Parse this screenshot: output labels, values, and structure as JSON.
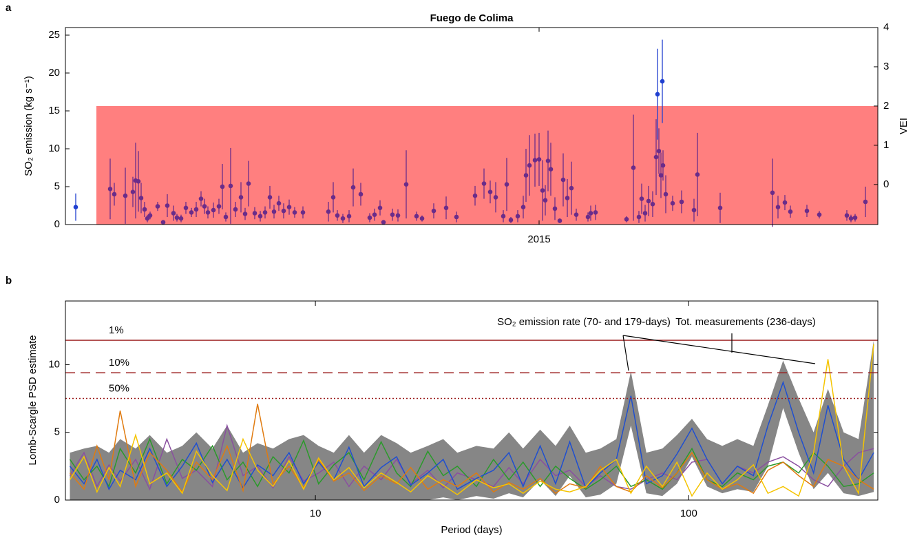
{
  "chart_data": [
    {
      "type": "scatter",
      "panel_label": "a",
      "title": "Fuego de Colima",
      "ylabel": "SO₂ emission (kg s⁻¹)",
      "y2label": "VEI",
      "xlim": [
        2013.624,
        2015.984
      ],
      "xticks": [
        2015
      ],
      "ylim": [
        0,
        26
      ],
      "yticks": [
        0,
        5,
        10,
        15,
        20,
        25
      ],
      "y2lim": [
        -1.02,
        4
      ],
      "y2ticks": [
        0,
        1,
        2,
        3,
        4
      ],
      "vei_band": {
        "value": 2,
        "start": 2013.714,
        "color": "#ff7f7f",
        "axis": "y2"
      },
      "series": [
        {
          "color": "#6a2c8a",
          "x": [
            2013.754,
            2013.766,
            2013.798,
            2013.82,
            2013.828,
            2013.836,
            2013.844,
            2013.854,
            2013.862,
            2013.87,
            2013.892,
            2013.908,
            2013.92,
            2013.938,
            2013.948,
            2013.96,
            2013.974,
            2013.99,
            2014.004,
            2014.018,
            2014.028,
            2014.038,
            2014.054,
            2014.07,
            2014.08,
            2014.09,
            2014.104,
            2014.118,
            2014.134,
            2014.146,
            2014.156,
            2014.174,
            2014.19,
            2014.204,
            2014.218,
            2014.23,
            2014.244,
            2014.258,
            2014.274,
            2014.29,
            2014.314,
            2014.388,
            2014.402,
            2014.414,
            2014.43,
            2014.448,
            2014.46,
            2014.482,
            2014.508,
            2014.522,
            2014.538,
            2014.548,
            2014.574,
            2014.59,
            2014.614,
            2014.644,
            2014.66,
            2014.694,
            2014.73,
            2014.76,
            2014.814,
            2014.84,
            2014.858,
            2014.874,
            2014.896,
            2014.906,
            2014.918,
            2014.938,
            2014.954,
            2014.962,
            2014.972,
            2014.988,
            2015.0,
            2015.01,
            2015.018,
            2015.026,
            2015.034,
            2015.046,
            2015.06,
            2015.07,
            2015.082,
            2015.094,
            2015.108,
            2015.142,
            2015.15,
            2015.164,
            2015.254,
            2015.274,
            2015.29,
            2015.298,
            2015.308,
            2015.318,
            2015.33,
            2015.34,
            2015.348,
            2015.354,
            2015.36,
            2015.368,
            2015.388,
            2015.414,
            2015.45,
            2015.46,
            2015.526,
            2015.678,
            2015.694,
            2015.714,
            2015.73,
            2015.778,
            2015.814,
            2015.894,
            2015.906,
            2015.918,
            2015.948
          ],
          "values": [
            4.7,
            4.0,
            3.8,
            4.3,
            5.8,
            5.7,
            3.5,
            2.0,
            0.8,
            1.2,
            2.4,
            0.3,
            2.5,
            1.5,
            0.9,
            0.8,
            2.2,
            1.6,
            2.0,
            3.4,
            2.4,
            1.6,
            1.9,
            2.4,
            5.0,
            1.0,
            5.1,
            2.0,
            3.6,
            1.4,
            5.4,
            1.5,
            1.1,
            1.6,
            3.6,
            1.7,
            2.8,
            1.8,
            2.3,
            1.6,
            1.6,
            1.7,
            3.6,
            1.2,
            0.8,
            1.1,
            4.9,
            4.0,
            0.9,
            1.3,
            2.2,
            0.3,
            1.3,
            1.2,
            5.3,
            1.1,
            0.8,
            1.8,
            2.2,
            1.0,
            3.8,
            5.4,
            4.3,
            3.6,
            1.1,
            5.3,
            0.6,
            1.1,
            2.3,
            6.5,
            7.8,
            8.5,
            8.6,
            4.5,
            3.2,
            8.4,
            7.3,
            2.1,
            0.5,
            5.9,
            3.5,
            4.8,
            1.3,
            1.0,
            1.5,
            1.6,
            0.7,
            7.5,
            1.0,
            3.4,
            1.5,
            3.1,
            2.7,
            8.9,
            9.7,
            6.5,
            7.8,
            4.0,
            2.8,
            3.0,
            1.9,
            6.6,
            2.2,
            4.2,
            2.3,
            2.9,
            1.7,
            1.8,
            1.3,
            1.2,
            0.8,
            0.9,
            3.0
          ],
          "errors": [
            4,
            1.5,
            3.7,
            2,
            5,
            4,
            2,
            1,
            0.5,
            0.5,
            0.6,
            0.2,
            1.5,
            1,
            0.5,
            0.5,
            0.8,
            0.6,
            1,
            1,
            1,
            0.8,
            1,
            1,
            3,
            0.6,
            5,
            1,
            2,
            0.8,
            3,
            0.8,
            0.7,
            0.8,
            1.5,
            0.9,
            1,
            1,
            1,
            0.7,
            0.8,
            1.3,
            2,
            0.7,
            0.6,
            0.8,
            2.5,
            1.5,
            0.6,
            0.8,
            1,
            0.2,
            0.8,
            0.8,
            4.5,
            0.6,
            0.4,
            1,
            1.5,
            0.7,
            1.3,
            2,
            1.5,
            2,
            0.8,
            3.5,
            0.4,
            0.8,
            1.5,
            3.5,
            4,
            3.5,
            3.5,
            4,
            2,
            4,
            3.5,
            1.5,
            0.3,
            3.5,
            2.5,
            3.5,
            0.8,
            0.6,
            1,
            1,
            0.4,
            7,
            0.8,
            2,
            1.1,
            2,
            1.7,
            5,
            3,
            3,
            2,
            2.5,
            1,
            1.5,
            1.5,
            5.5,
            2,
            4.5,
            1.5,
            1,
            0.8,
            0.8,
            0.5,
            0.7,
            0.5,
            0.5,
            2
          ]
        },
        {
          "color": "#1f3fd0",
          "x": [
            2013.654,
            2015.344,
            2015.358
          ],
          "values": [
            2.3,
            17.2,
            18.9
          ],
          "errors": [
            1.8,
            6,
            5.5
          ]
        }
      ]
    },
    {
      "type": "line",
      "panel_label": "b",
      "ylabel": "Lomb-Scargle PSD estimate",
      "xlabel": "Period (days)",
      "xscale": "log",
      "xlim": [
        2.14,
        321
      ],
      "xticks": [
        10,
        100
      ],
      "ylim": [
        0,
        14.7
      ],
      "yticks": [
        0,
        5,
        10
      ],
      "x": [
        2.2,
        2.4,
        2.6,
        2.8,
        3,
        3.3,
        3.6,
        4,
        4.4,
        4.8,
        5.3,
        5.8,
        6.4,
        7,
        7.7,
        8.5,
        9.3,
        10.2,
        11.2,
        12.3,
        13.5,
        15,
        16.5,
        18,
        20,
        22,
        24,
        27,
        30,
        33,
        36,
        40,
        44,
        48,
        53,
        58,
        64,
        70,
        77,
        85,
        93,
        102,
        112,
        123,
        135,
        149,
        163,
        179,
        197,
        216,
        236,
        260,
        285,
        313
      ],
      "band": {
        "color": "#808080",
        "lower": [
          0,
          0,
          0,
          0,
          0,
          0,
          0,
          0,
          0,
          0,
          0,
          0,
          0,
          0,
          0,
          0,
          0,
          0,
          0,
          0,
          0,
          0,
          0,
          0,
          0,
          0.2,
          0,
          0.3,
          0.1,
          0.5,
          0.2,
          1.5,
          0.3,
          1.8,
          0.2,
          0.4,
          1.2,
          5.5,
          0.5,
          0.3,
          1.2,
          3.2,
          1.0,
          0.5,
          0.8,
          0.6,
          2.5,
          6.8,
          3.5,
          0.8,
          2.0,
          0.5,
          0.3,
          0.6
        ],
        "upper": [
          3.5,
          3.8,
          4.0,
          3.5,
          4.5,
          3.8,
          4.8,
          3.5,
          4.0,
          5.0,
          3.8,
          5.5,
          3.5,
          4.2,
          3.8,
          4.5,
          4.8,
          4.0,
          3.5,
          4.8,
          3.5,
          4.8,
          4.2,
          3.5,
          4.0,
          4.5,
          3.5,
          4.0,
          3.8,
          5.0,
          3.8,
          5.2,
          4.0,
          5.5,
          3.5,
          3.8,
          4.5,
          9.5,
          3.5,
          3.8,
          4.8,
          6.0,
          4.5,
          4.0,
          4.5,
          4.0,
          7.0,
          10.3,
          7.5,
          5.0,
          8.2,
          5.0,
          4.5,
          11.8
        ]
      },
      "series": [
        {
          "color": "#8a4fa0",
          "values": [
            1.8,
            3.5,
            1.0,
            2.6,
            1.4,
            3.0,
            0.8,
            4.5,
            1.6,
            2.2,
            1.0,
            5.5,
            1.8,
            2.5,
            0.9,
            3.2,
            1.4,
            2.0,
            2.8,
            1.0,
            2.5,
            1.5,
            3.0,
            1.2,
            2.2,
            0.9,
            2.0,
            1.5,
            1.0,
            2.4,
            1.2,
            3.0,
            1.8,
            2.2,
            1.0,
            1.8,
            1.0,
            0.8,
            1.5,
            2.0,
            1.5,
            2.8,
            3.0,
            1.2,
            2.5,
            2.0,
            2.8,
            3.2,
            2.5,
            1.5,
            1.0,
            2.5,
            3.5,
            3.8
          ]
        },
        {
          "color": "#2a9a2a",
          "values": [
            3.0,
            1.5,
            2.5,
            1.0,
            3.8,
            2.0,
            4.5,
            1.2,
            3.0,
            2.2,
            4.0,
            1.5,
            2.8,
            1.0,
            3.2,
            2.0,
            4.4,
            1.2,
            2.6,
            3.5,
            1.5,
            4.3,
            2.0,
            1.0,
            3.6,
            1.8,
            2.5,
            1.0,
            3.0,
            1.5,
            2.8,
            1.0,
            2.5,
            1.6,
            0.8,
            1.5,
            2.5,
            1.0,
            1.5,
            0.8,
            2.0,
            3.8,
            1.5,
            1.0,
            2.0,
            1.5,
            2.5,
            2.8,
            2.0,
            3.5,
            2.5,
            1.0,
            1.2,
            2.0
          ]
        },
        {
          "color": "#1f4fd0",
          "values": [
            2.5,
            1.2,
            3.0,
            0.8,
            2.2,
            1.5,
            3.8,
            1.0,
            2.5,
            4.2,
            1.3,
            3.0,
            0.9,
            2.6,
            1.8,
            3.5,
            1.2,
            2.8,
            1.5,
            3.9,
            1.0,
            2.4,
            3.2,
            1.1,
            2.0,
            3.0,
            0.8,
            1.6,
            2.2,
            3.5,
            1.0,
            4.0,
            1.2,
            4.3,
            0.9,
            2.0,
            3.0,
            7.7,
            1.2,
            1.8,
            3.4,
            5.3,
            3.0,
            1.2,
            2.5,
            1.8,
            5.5,
            8.7,
            5.0,
            2.0,
            7.0,
            3.0,
            1.5,
            3.5
          ]
        },
        {
          "color": "#e07b10",
          "values": [
            2.0,
            0.8,
            4.0,
            1.5,
            6.6,
            1.0,
            3.5,
            2.2,
            0.6,
            2.8,
            1.5,
            4.0,
            0.7,
            7.1,
            1.2,
            2.5,
            0.9,
            3.0,
            1.4,
            2.0,
            0.7,
            1.8,
            1.2,
            2.4,
            0.8,
            1.5,
            1.0,
            2.0,
            0.6,
            1.3,
            0.8,
            1.6,
            0.5,
            1.2,
            0.9,
            2.5,
            1.0,
            0.6,
            1.8,
            0.9,
            2.0,
            3.5,
            1.5,
            0.8,
            1.2,
            0.5,
            2.2,
            2.8,
            1.8,
            1.0,
            3.0,
            2.5,
            1.5,
            0.8
          ]
        },
        {
          "color": "#f5c400",
          "values": [
            1.5,
            3.2,
            0.6,
            2.4,
            1.0,
            4.8,
            1.2,
            2.0,
            0.5,
            3.6,
            1.8,
            0.7,
            4.5,
            2.2,
            1.0,
            2.9,
            0.8,
            3.1,
            1.5,
            2.4,
            0.9,
            2.0,
            1.3,
            0.6,
            1.8,
            1.1,
            0.4,
            1.5,
            0.9,
            1.2,
            0.5,
            1.4,
            0.8,
            0.6,
            1.0,
            2.2,
            3.0,
            0.5,
            2.5,
            1.0,
            2.8,
            0.3,
            2.0,
            0.8,
            1.5,
            2.6,
            0.5,
            1.0,
            0.3,
            3.5,
            10.4,
            2.5,
            0.5,
            11.5
          ]
        }
      ],
      "threshold_color": "#9b1c1c",
      "thresholds": [
        {
          "label": "1%",
          "value": 11.8,
          "style": "solid"
        },
        {
          "label": "10%",
          "value": 9.4,
          "style": "dashed"
        },
        {
          "label": "50%",
          "value": 7.5,
          "style": "dotted"
        }
      ],
      "annotations": [
        "SO₂ emission rate (70- and 179-days)",
        "Tot. measurements (236-days)"
      ]
    }
  ]
}
